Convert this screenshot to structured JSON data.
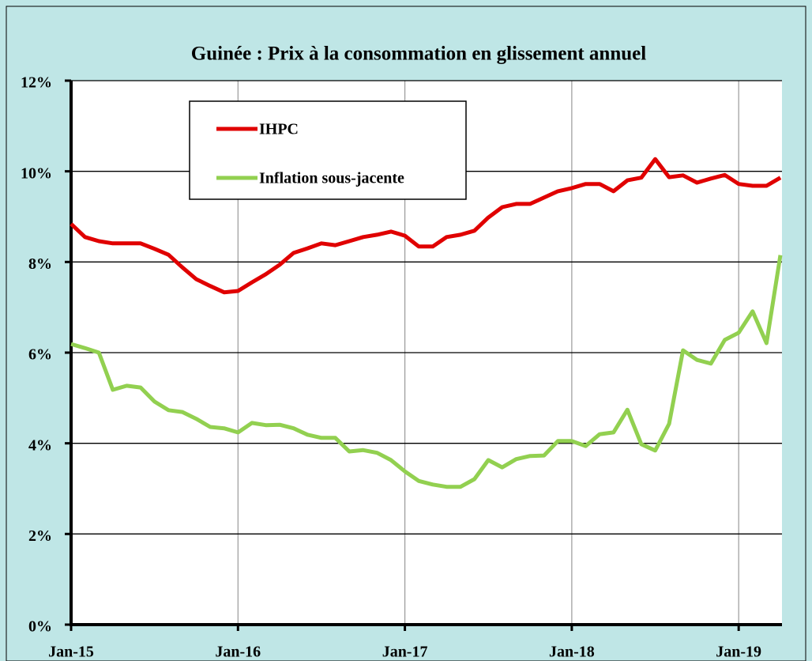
{
  "chart_data": {
    "type": "line",
    "title": "Guinée : Prix à la consommation en glissement annuel",
    "categories": [
      "Jan-15",
      null,
      null,
      null,
      null,
      null,
      null,
      null,
      null,
      null,
      null,
      null,
      "Jan-16",
      null,
      null,
      null,
      null,
      null,
      null,
      null,
      null,
      null,
      null,
      null,
      "Jan-17",
      null,
      null,
      null,
      null,
      null,
      null,
      null,
      null,
      null,
      null,
      null,
      "Jan-18",
      null,
      null,
      null,
      null,
      null,
      null,
      null,
      null,
      null,
      null,
      null,
      "Jan-19",
      null,
      null,
      null
    ],
    "series": [
      {
        "name": "IHPC",
        "color": "#e00000",
        "values": [
          8.84,
          8.55,
          8.46,
          8.41,
          8.41,
          8.41,
          8.29,
          8.16,
          7.88,
          7.62,
          7.47,
          7.33,
          7.36,
          7.55,
          7.73,
          7.94,
          8.2,
          8.3,
          8.41,
          8.37,
          8.46,
          8.55,
          8.6,
          8.67,
          8.58,
          8.34,
          8.34,
          8.55,
          8.6,
          8.69,
          8.98,
          9.21,
          9.28,
          9.28,
          9.42,
          9.56,
          9.63,
          9.72,
          9.72,
          9.56,
          9.8,
          9.86,
          10.27,
          9.87,
          9.91,
          9.75,
          9.84,
          9.92,
          9.72,
          9.68,
          9.68,
          9.86
        ]
      },
      {
        "name": "Inflation sous-jacente",
        "color": "#92d050",
        "values": [
          6.19,
          6.1,
          6.0,
          5.18,
          5.27,
          5.23,
          4.92,
          4.73,
          4.69,
          4.54,
          4.36,
          4.33,
          4.24,
          4.45,
          4.4,
          4.41,
          4.33,
          4.19,
          4.12,
          4.12,
          3.82,
          3.85,
          3.79,
          3.63,
          3.38,
          3.17,
          3.09,
          3.04,
          3.04,
          3.21,
          3.63,
          3.47,
          3.65,
          3.72,
          3.73,
          4.05,
          4.05,
          3.94,
          4.2,
          4.24,
          4.74,
          3.98,
          3.84,
          4.43,
          6.05,
          5.84,
          5.76,
          6.28,
          6.44,
          6.91,
          6.21,
          8.15
        ]
      }
    ],
    "ylim": [
      0,
      12
    ],
    "yticks": [
      {
        "value": 0,
        "label": "0%"
      },
      {
        "value": 2,
        "label": "2%"
      },
      {
        "value": 4,
        "label": "4%"
      },
      {
        "value": 6,
        "label": "6%"
      },
      {
        "value": 8,
        "label": "8%"
      },
      {
        "value": 10,
        "label": "10%"
      },
      {
        "value": 12,
        "label": "12%"
      }
    ],
    "grid": true
  }
}
